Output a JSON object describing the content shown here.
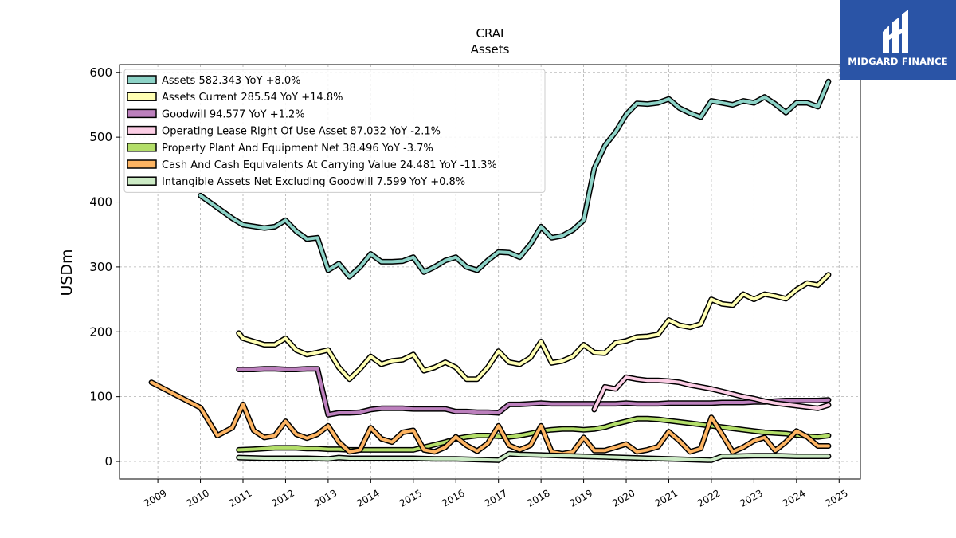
{
  "title": "CRAI",
  "subtitle": "Assets",
  "logo": {
    "text": "MIDGARD FINANCE",
    "mark_icon": "midgard-logo-icon",
    "background": "#2a54a6"
  },
  "chart_data": {
    "type": "line",
    "title": "CRAI",
    "subtitle": "Assets",
    "xlabel": "",
    "ylabel": "USDm",
    "xlim": [
      2008.1,
      2025.5
    ],
    "ylim": [
      -27,
      612
    ],
    "yticks": [
      0,
      100,
      200,
      300,
      400,
      500,
      600
    ],
    "xticks": [
      "2009",
      "2010",
      "2011",
      "2012",
      "2013",
      "2014",
      "2015",
      "2016",
      "2017",
      "2018",
      "2019",
      "2020",
      "2021",
      "2022",
      "2023",
      "2024",
      "2025"
    ],
    "grid": true,
    "legend_position": "top-left",
    "series": [
      {
        "name": "Assets",
        "legend": "Assets  582.343 YoY +8.0%",
        "color": "#8dd3c7",
        "x": [
          2010.0,
          2010.75,
          2011.0,
          2011.5,
          2011.75,
          2012.0,
          2012.25,
          2012.5,
          2012.75,
          2013.0,
          2013.25,
          2013.5,
          2013.75,
          2014.0,
          2014.25,
          2014.5,
          2014.75,
          2015.0,
          2015.25,
          2015.5,
          2015.75,
          2016.0,
          2016.25,
          2016.5,
          2016.75,
          2017.0,
          2017.25,
          2017.5,
          2017.75,
          2018.0,
          2018.25,
          2018.5,
          2018.75,
          2019.0,
          2019.25,
          2019.5,
          2019.75,
          2020.0,
          2020.25,
          2020.5,
          2020.75,
          2021.0,
          2021.25,
          2021.5,
          2021.75,
          2022.0,
          2022.25,
          2022.5,
          2022.75,
          2023.0,
          2023.25,
          2023.5,
          2023.75,
          2024.0,
          2024.25,
          2024.5,
          2024.75
        ],
        "y": [
          410,
          375,
          365,
          360,
          362,
          372,
          355,
          343,
          345,
          295,
          305,
          285,
          300,
          320,
          308,
          308,
          309,
          315,
          292,
          300,
          310,
          315,
          300,
          295,
          310,
          323,
          322,
          315,
          335,
          362,
          345,
          348,
          357,
          372,
          452,
          487,
          508,
          535,
          552,
          551,
          553,
          559,
          545,
          537,
          531,
          556,
          553,
          550,
          556,
          553,
          562,
          551,
          538,
          553,
          553,
          547,
          586
        ]
      },
      {
        "name": "Assets Current",
        "legend": "Assets Current  285.54 YoY +14.8%",
        "color": "#ffffb3",
        "x": [
          2010.9,
          2011.0,
          2011.5,
          2011.75,
          2012.0,
          2012.25,
          2012.5,
          2012.75,
          2013.0,
          2013.25,
          2013.5,
          2013.75,
          2014.0,
          2014.25,
          2014.5,
          2014.75,
          2015.0,
          2015.25,
          2015.5,
          2015.75,
          2016.0,
          2016.25,
          2016.5,
          2016.75,
          2017.0,
          2017.25,
          2017.5,
          2017.75,
          2018.0,
          2018.25,
          2018.5,
          2018.75,
          2019.0,
          2019.25,
          2019.5,
          2019.75,
          2020.0,
          2020.25,
          2020.5,
          2020.75,
          2021.0,
          2021.25,
          2021.5,
          2021.75,
          2022.0,
          2022.25,
          2022.5,
          2022.75,
          2023.0,
          2023.25,
          2023.5,
          2023.75,
          2024.0,
          2024.25,
          2024.5,
          2024.75
        ],
        "y": [
          198,
          190,
          180,
          180,
          190,
          172,
          165,
          168,
          172,
          145,
          127,
          143,
          162,
          150,
          155,
          157,
          165,
          140,
          145,
          153,
          145,
          127,
          127,
          145,
          170,
          153,
          150,
          160,
          185,
          152,
          155,
          162,
          180,
          168,
          167,
          183,
          186,
          192,
          193,
          196,
          218,
          210,
          207,
          212,
          250,
          243,
          241,
          258,
          250,
          258,
          255,
          251,
          265,
          275,
          272,
          288
        ]
      },
      {
        "name": "Goodwill",
        "legend": "Goodwill  94.577 YoY +1.2%",
        "color": "#bc80bd",
        "x": [
          2010.9,
          2011.25,
          2011.5,
          2011.75,
          2012.0,
          2012.25,
          2012.5,
          2012.75,
          2013.0,
          2013.25,
          2013.5,
          2013.75,
          2014.0,
          2014.25,
          2014.5,
          2014.75,
          2015.0,
          2015.25,
          2015.5,
          2015.75,
          2016.0,
          2016.25,
          2016.5,
          2016.75,
          2017.0,
          2017.25,
          2017.5,
          2017.75,
          2018.0,
          2018.25,
          2018.5,
          2018.75,
          2019.0,
          2019.25,
          2019.5,
          2019.75,
          2020.0,
          2020.25,
          2020.5,
          2020.75,
          2021.0,
          2021.25,
          2021.5,
          2021.75,
          2022.0,
          2022.25,
          2022.5,
          2022.75,
          2023.0,
          2023.25,
          2023.5,
          2023.75,
          2024.0,
          2024.25,
          2024.5,
          2024.75
        ],
        "y": [
          142,
          142,
          143,
          143,
          142,
          142,
          143,
          143,
          72,
          75,
          75,
          76,
          80,
          82,
          82,
          82,
          81,
          81,
          81,
          81,
          77,
          77,
          76,
          76,
          75,
          88,
          88,
          89,
          90,
          89,
          89,
          89,
          89,
          89,
          89,
          89,
          90,
          89,
          89,
          89,
          90,
          90,
          90,
          90,
          90,
          91,
          91,
          91,
          92,
          92,
          93,
          94,
          94,
          94,
          94,
          95
        ]
      },
      {
        "name": "Operating Lease Right Of Use Asset",
        "legend": "Operating Lease Right Of Use Asset  87.032 YoY -2.1%",
        "color": "#fccde5",
        "x": [
          2019.25,
          2019.5,
          2019.75,
          2020.0,
          2020.25,
          2020.5,
          2020.75,
          2021.0,
          2021.25,
          2021.5,
          2021.75,
          2022.0,
          2022.25,
          2022.5,
          2022.75,
          2023.0,
          2023.25,
          2023.5,
          2023.75,
          2024.0,
          2024.25,
          2024.5,
          2024.75
        ],
        "y": [
          80,
          115,
          112,
          130,
          127,
          125,
          125,
          124,
          122,
          118,
          115,
          112,
          108,
          104,
          100,
          97,
          93,
          90,
          88,
          86,
          84,
          82,
          87
        ]
      },
      {
        "name": "Property Plant And Equipment Net",
        "legend": "Property Plant And Equipment Net  38.496 YoY -3.7%",
        "color": "#b3de69",
        "x": [
          2010.9,
          2011.25,
          2011.5,
          2011.75,
          2012.0,
          2012.25,
          2012.5,
          2012.75,
          2013.0,
          2013.25,
          2013.5,
          2013.75,
          2014.0,
          2014.25,
          2014.5,
          2014.75,
          2015.0,
          2015.25,
          2015.5,
          2015.75,
          2016.0,
          2016.25,
          2016.5,
          2016.75,
          2017.0,
          2017.25,
          2017.5,
          2017.75,
          2018.0,
          2018.25,
          2018.5,
          2018.75,
          2019.0,
          2019.25,
          2019.5,
          2019.75,
          2020.0,
          2020.25,
          2020.5,
          2020.75,
          2021.0,
          2021.25,
          2021.5,
          2021.75,
          2022.0,
          2022.25,
          2022.5,
          2022.75,
          2023.0,
          2023.25,
          2023.5,
          2023.75,
          2024.0,
          2024.25,
          2024.5,
          2024.75
        ],
        "y": [
          18,
          19,
          20,
          21,
          21,
          21,
          20,
          20,
          19,
          19,
          18,
          18,
          18,
          18,
          18,
          18,
          18,
          22,
          26,
          30,
          35,
          38,
          40,
          40,
          39,
          38,
          40,
          43,
          47,
          49,
          50,
          50,
          49,
          50,
          53,
          58,
          62,
          66,
          66,
          65,
          63,
          61,
          59,
          57,
          55,
          53,
          51,
          49,
          47,
          45,
          44,
          43,
          41,
          39,
          38,
          40
        ]
      },
      {
        "name": "Cash And Cash Equivalents At Carrying Value",
        "legend": "Cash And Cash Equivalents At Carrying Value  24.481 YoY -11.3%",
        "color": "#fdb462",
        "x": [
          2008.85,
          2010.0,
          2010.4,
          2010.75,
          2011.0,
          2011.25,
          2011.5,
          2011.75,
          2012.0,
          2012.25,
          2012.5,
          2012.75,
          2013.0,
          2013.25,
          2013.5,
          2013.75,
          2014.0,
          2014.25,
          2014.5,
          2014.75,
          2015.0,
          2015.25,
          2015.5,
          2015.75,
          2016.0,
          2016.25,
          2016.5,
          2016.75,
          2017.0,
          2017.25,
          2017.5,
          2017.75,
          2018.0,
          2018.25,
          2018.5,
          2018.75,
          2019.0,
          2019.25,
          2019.5,
          2019.75,
          2020.0,
          2020.25,
          2020.5,
          2020.75,
          2021.0,
          2021.25,
          2021.5,
          2021.75,
          2022.0,
          2022.25,
          2022.5,
          2022.75,
          2023.0,
          2023.25,
          2023.5,
          2023.75,
          2024.0,
          2024.25,
          2024.5,
          2024.75
        ],
        "y": [
          122,
          83,
          40,
          52,
          88,
          48,
          37,
          40,
          62,
          42,
          36,
          42,
          55,
          30,
          15,
          18,
          52,
          35,
          30,
          45,
          48,
          18,
          15,
          22,
          38,
          25,
          16,
          28,
          55,
          25,
          18,
          25,
          55,
          15,
          12,
          15,
          37,
          17,
          17,
          22,
          27,
          15,
          18,
          23,
          46,
          32,
          15,
          20,
          68,
          42,
          15,
          22,
          32,
          37,
          17,
          30,
          47,
          38,
          24,
          24
        ]
      },
      {
        "name": "Intangible Assets Net Excluding Goodwill",
        "legend": "Intangible Assets Net Excluding Goodwill  7.599 YoY +0.8%",
        "color": "#ccebc5",
        "x": [
          2010.9,
          2011.5,
          2012.0,
          2012.5,
          2013.0,
          2013.25,
          2013.5,
          2014.0,
          2014.5,
          2015.0,
          2015.5,
          2016.0,
          2016.5,
          2017.0,
          2017.25,
          2017.5,
          2018.0,
          2018.5,
          2019.0,
          2019.5,
          2020.0,
          2020.5,
          2021.0,
          2021.5,
          2022.0,
          2022.25,
          2022.5,
          2023.0,
          2023.5,
          2024.0,
          2024.5,
          2024.75
        ],
        "y": [
          6,
          5,
          5,
          5,
          4,
          6,
          5,
          5,
          5,
          5,
          4,
          4,
          3,
          2,
          12,
          11,
          10,
          9,
          8,
          7,
          6,
          5,
          4,
          3,
          2,
          8,
          8,
          9,
          9,
          8,
          8,
          8
        ]
      }
    ]
  }
}
